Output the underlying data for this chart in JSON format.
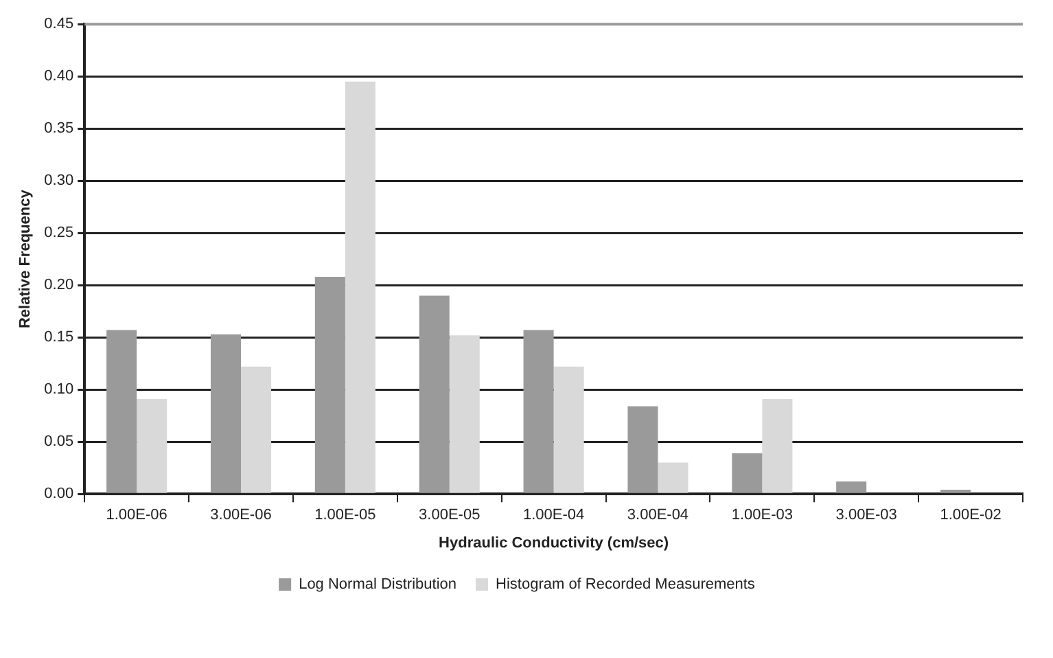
{
  "chart_data": {
    "type": "bar",
    "xlabel": "Hydraulic Conductivity (cm/sec)",
    "ylabel": "Relative Frequency",
    "categories": [
      "1.00E-06",
      "3.00E-06",
      "1.00E-05",
      "3.00E-05",
      "1.00E-04",
      "3.00E-04",
      "1.00E-03",
      "3.00E-03",
      "1.00E-02"
    ],
    "series": [
      {
        "name": "Log Normal Distribution",
        "color": "#9a9a9a",
        "values": [
          0.157,
          0.153,
          0.208,
          0.19,
          0.157,
          0.084,
          0.039,
          0.012,
          0.004
        ]
      },
      {
        "name": "Histogram of Recorded Measurements",
        "color": "#d9d9d9",
        "values": [
          0.091,
          0.122,
          0.395,
          0.152,
          0.122,
          0.03,
          0.091,
          0,
          0
        ]
      }
    ],
    "ylim": [
      0,
      0.45
    ],
    "yticks": [
      {
        "value": 0,
        "label": "0.00"
      },
      {
        "value": 0.05,
        "label": "0.05"
      },
      {
        "value": 0.1,
        "label": "0.10"
      },
      {
        "value": 0.15,
        "label": "0.15"
      },
      {
        "value": 0.2,
        "label": "0.20"
      },
      {
        "value": 0.25,
        "label": "0.25"
      },
      {
        "value": 0.3,
        "label": "0.30"
      },
      {
        "value": 0.35,
        "label": "0.35"
      },
      {
        "value": 0.4,
        "label": "0.40"
      },
      {
        "value": 0.45,
        "label": "0.45"
      }
    ],
    "grid": "y",
    "legend": "bottom"
  }
}
